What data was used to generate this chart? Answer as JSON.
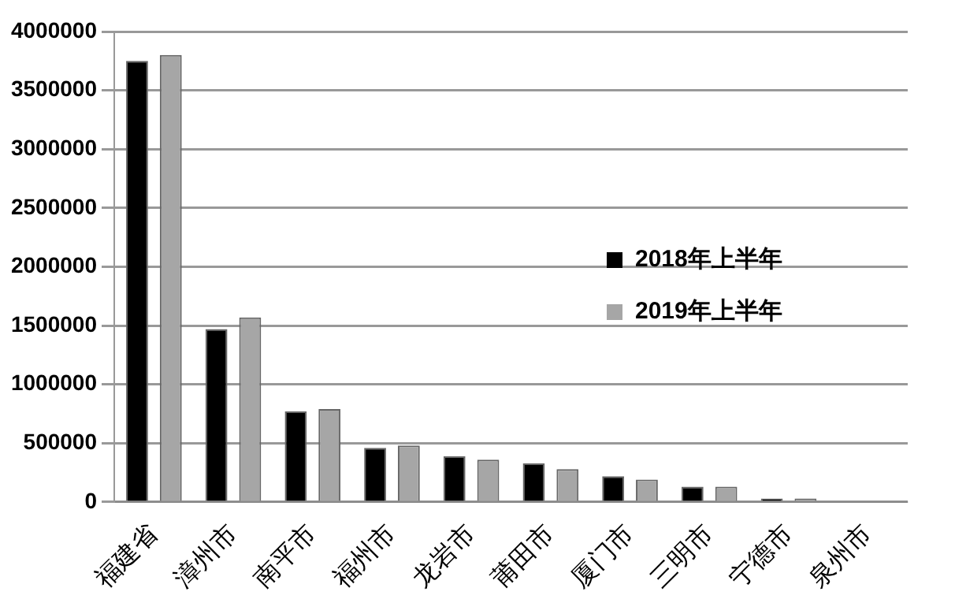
{
  "chart_data": {
    "type": "bar",
    "categories": [
      "福建省",
      "漳州市",
      "南平市",
      "福州市",
      "龙岩市",
      "莆田市",
      "厦门市",
      "三明市",
      "宁德市",
      "泉州市"
    ],
    "series": [
      {
        "name": "2018年上半年",
        "color": "#000000",
        "values": [
          3750000,
          1470000,
          770000,
          460000,
          390000,
          330000,
          220000,
          130000,
          30000,
          10000
        ]
      },
      {
        "name": "2019年上半年",
        "color": "#a6a6a6",
        "values": [
          3800000,
          1570000,
          790000,
          480000,
          360000,
          280000,
          190000,
          130000,
          30000,
          10000
        ]
      }
    ],
    "ylim": [
      0,
      4000000
    ],
    "yticks": [
      0,
      500000,
      1000000,
      1500000,
      2000000,
      2500000,
      3000000,
      3500000,
      4000000
    ],
    "grid": "y",
    "legend": "right"
  }
}
